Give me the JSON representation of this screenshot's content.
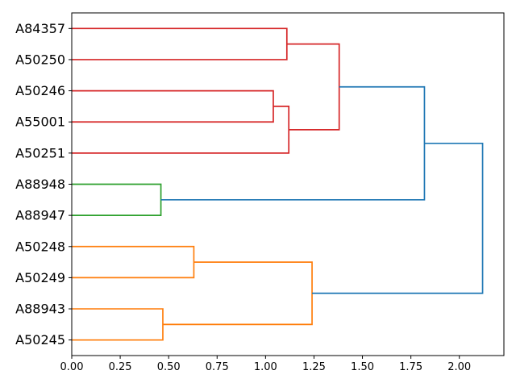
{
  "figure": {
    "background": "#ffffff",
    "border_color": "#000000"
  },
  "chart_data": {
    "type": "dendrogram",
    "orientation": "right",
    "title": "",
    "xlabel": "",
    "ylabel": "",
    "grid": false,
    "leaves": [
      "A84357",
      "A50250",
      "A50246",
      "A55001",
      "A50251",
      "A88948",
      "A88947",
      "A50248",
      "A50249",
      "A88943",
      "A50245"
    ],
    "links": [
      {
        "children": [
          "A84357",
          "A50250"
        ],
        "height": 1.11,
        "color_name": "red"
      },
      {
        "children": [
          "A50246",
          "A55001"
        ],
        "height": 1.04,
        "color_name": "red"
      },
      {
        "children": [
          1,
          "A50251"
        ],
        "height": 1.12,
        "color_name": "red"
      },
      {
        "children": [
          0,
          2
        ],
        "height": 1.38,
        "color_name": "red"
      },
      {
        "children": [
          "A88948",
          "A88947"
        ],
        "height": 0.46,
        "color_name": "green"
      },
      {
        "children": [
          3,
          4
        ],
        "height": 1.82,
        "color_name": "blue"
      },
      {
        "children": [
          "A50248",
          "A50249"
        ],
        "height": 0.63,
        "color_name": "orange"
      },
      {
        "children": [
          "A88943",
          "A50245"
        ],
        "height": 0.47,
        "color_name": "orange"
      },
      {
        "children": [
          6,
          7
        ],
        "height": 1.24,
        "color_name": "orange"
      },
      {
        "children": [
          5,
          8
        ],
        "height": 2.12,
        "color_name": "blue"
      }
    ],
    "colors": {
      "red": "#d62728",
      "green": "#2ca02c",
      "orange": "#ff7f0e",
      "blue": "#1f77b4"
    },
    "x_ticks": [
      0.0,
      0.25,
      0.5,
      0.75,
      1.0,
      1.25,
      1.5,
      1.75,
      2.0
    ],
    "x_tick_labels": [
      "0.00",
      "0.25",
      "0.50",
      "0.75",
      "1.00",
      "1.25",
      "1.50",
      "1.75",
      "2.00"
    ],
    "xlim": [
      0,
      2.23
    ],
    "legend": null
  }
}
